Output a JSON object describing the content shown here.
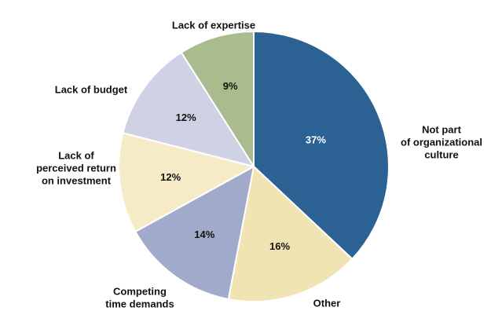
{
  "chart_data": {
    "type": "pie",
    "title": "",
    "start_angle": "12 o'clock",
    "direction": "clockwise",
    "slices": [
      {
        "category": "Not part of organizational culture",
        "lines": [
          "Not part",
          "of organizational",
          "culture"
        ],
        "value": 37,
        "value_label": "37%",
        "color": "#2c6194",
        "value_text_color": "#ffffff"
      },
      {
        "category": "Other",
        "lines": [
          "Other"
        ],
        "value": 16,
        "value_label": "16%",
        "color": "#f1e4b3",
        "value_text_color": "#111111"
      },
      {
        "category": "Competing time demands",
        "lines": [
          "Competing",
          "time demands"
        ],
        "value": 14,
        "value_label": "14%",
        "color": "#a2aacb",
        "value_text_color": "#111111"
      },
      {
        "category": "Lack of perceived return on investment",
        "lines": [
          "Lack of",
          "perceived return",
          "on investment"
        ],
        "value": 12,
        "value_label": "12%",
        "color": "#f5ecc7",
        "value_text_color": "#111111"
      },
      {
        "category": "Lack of budget",
        "lines": [
          "Lack of budget"
        ],
        "value": 12,
        "value_label": "12%",
        "color": "#cfd2e4",
        "value_text_color": "#111111"
      },
      {
        "category": "Lack of expertise",
        "lines": [
          "Lack of expertise"
        ],
        "value": 9,
        "value_label": "9%",
        "color": "#aabb8e",
        "value_text_color": "#111111"
      }
    ]
  }
}
